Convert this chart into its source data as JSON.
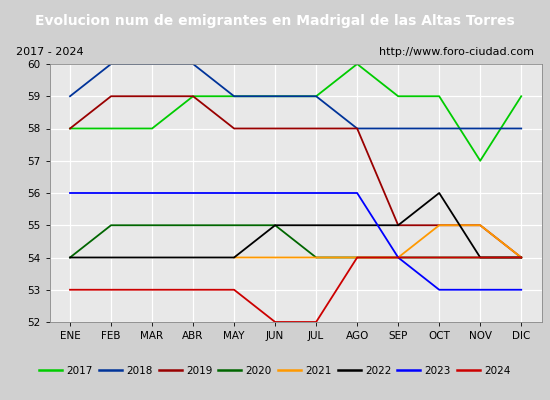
{
  "title": "Evolucion num de emigrantes en Madrigal de las Altas Torres",
  "subtitle_left": "2017 - 2024",
  "subtitle_right": "http://www.foro-ciudad.com",
  "months": [
    "ENE",
    "FEB",
    "MAR",
    "ABR",
    "MAY",
    "JUN",
    "JUL",
    "AGO",
    "SEP",
    "OCT",
    "NOV",
    "DIC"
  ],
  "month_indices": [
    1,
    2,
    3,
    4,
    5,
    6,
    7,
    8,
    9,
    10,
    11,
    12
  ],
  "ylim": [
    52.0,
    60.0
  ],
  "yticks": [
    52.0,
    53.0,
    54.0,
    55.0,
    56.0,
    57.0,
    58.0,
    59.0,
    60.0
  ],
  "series": {
    "2017": {
      "color": "#00cc00",
      "data": [
        [
          1,
          58
        ],
        [
          2,
          58
        ],
        [
          3,
          58
        ],
        [
          4,
          59
        ],
        [
          5,
          59
        ],
        [
          6,
          59
        ],
        [
          7,
          59
        ],
        [
          8,
          60
        ],
        [
          9,
          59
        ],
        [
          10,
          59
        ],
        [
          11,
          57
        ],
        [
          12,
          59
        ]
      ]
    },
    "2018": {
      "color": "#003399",
      "data": [
        [
          1,
          59
        ],
        [
          2,
          60
        ],
        [
          3,
          60
        ],
        [
          4,
          60
        ],
        [
          5,
          59
        ],
        [
          6,
          59
        ],
        [
          7,
          59
        ],
        [
          8,
          58
        ],
        [
          9,
          58
        ],
        [
          10,
          58
        ],
        [
          11,
          58
        ],
        [
          12,
          58
        ]
      ]
    },
    "2019": {
      "color": "#990000",
      "data": [
        [
          1,
          58
        ],
        [
          2,
          59
        ],
        [
          3,
          59
        ],
        [
          4,
          59
        ],
        [
          5,
          58
        ],
        [
          6,
          58
        ],
        [
          7,
          58
        ],
        [
          8,
          58
        ],
        [
          9,
          55
        ],
        [
          10,
          55
        ],
        [
          11,
          55
        ],
        [
          12,
          54
        ]
      ]
    },
    "2020": {
      "color": "#006600",
      "data": [
        [
          1,
          54
        ],
        [
          2,
          55
        ],
        [
          3,
          55
        ],
        [
          4,
          55
        ],
        [
          5,
          55
        ],
        [
          6,
          55
        ],
        [
          7,
          54
        ],
        [
          8,
          54
        ],
        [
          9,
          54
        ],
        [
          10,
          54
        ],
        [
          11,
          54
        ],
        [
          12,
          54
        ]
      ]
    },
    "2021": {
      "color": "#ff9900",
      "data": [
        [
          5,
          54
        ],
        [
          6,
          54
        ],
        [
          7,
          54
        ],
        [
          8,
          54
        ],
        [
          9,
          54
        ],
        [
          10,
          55
        ],
        [
          11,
          55
        ],
        [
          12,
          54
        ]
      ]
    },
    "2022": {
      "color": "#000000",
      "data": [
        [
          1,
          54
        ],
        [
          2,
          54
        ],
        [
          3,
          54
        ],
        [
          4,
          54
        ],
        [
          5,
          54
        ],
        [
          6,
          55
        ],
        [
          7,
          55
        ],
        [
          8,
          55
        ],
        [
          9,
          55
        ],
        [
          10,
          56
        ],
        [
          11,
          54
        ],
        [
          12,
          54
        ]
      ]
    },
    "2023": {
      "color": "#0000ff",
      "data": [
        [
          1,
          56
        ],
        [
          2,
          56
        ],
        [
          3,
          56
        ],
        [
          4,
          56
        ],
        [
          5,
          56
        ],
        [
          6,
          56
        ],
        [
          7,
          56
        ],
        [
          8,
          56
        ],
        [
          9,
          54
        ],
        [
          10,
          53
        ],
        [
          11,
          53
        ],
        [
          12,
          53
        ]
      ]
    },
    "2024": {
      "color": "#cc0000",
      "data": [
        [
          1,
          53
        ],
        [
          2,
          53
        ],
        [
          3,
          53
        ],
        [
          4,
          53
        ],
        [
          5,
          53
        ],
        [
          6,
          52
        ],
        [
          7,
          52
        ],
        [
          8,
          54
        ],
        [
          9,
          54
        ],
        [
          10,
          54
        ],
        [
          11,
          54
        ],
        [
          12,
          54
        ]
      ]
    }
  },
  "title_bg_color": "#3d6dcc",
  "title_font_color": "#ffffff",
  "plot_bg_color": "#e8e8e8",
  "grid_color": "#ffffff",
  "subtitle_bg": "#f0f0f0",
  "legend_bg": "#f8f8f8"
}
